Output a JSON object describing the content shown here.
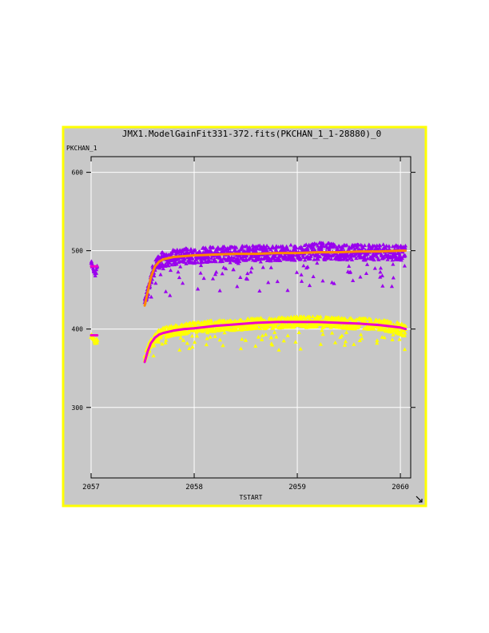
{
  "chart_data": {
    "type": "scatter",
    "title": "JMX1.ModelGainFit331-372.fits(PKCHAN_1_1-28880)_0",
    "xlabel": "TSTART",
    "ylabel": "PKCHAN_1",
    "xlim": [
      2057.0,
      2060.1
    ],
    "ylim": [
      210,
      620
    ],
    "x_ticks": [
      "2057",
      "2058",
      "2059",
      "2060"
    ],
    "y_ticks": [
      "300",
      "400",
      "500",
      "600"
    ],
    "grid": true,
    "colors": {
      "background": "#c8c8c8",
      "frame": "#ffff00",
      "grid": "#ffffff",
      "upper_points": "#9900ee",
      "upper_fit": "#ff8800",
      "lower_points": "#ffff00",
      "lower_fit": "#ee00cc"
    },
    "series": [
      {
        "kind": "points",
        "color": "#9900ee",
        "segments": [
          {
            "x": [
              2057.0,
              2057.02,
              2057.04,
              2057.06
            ],
            "y": [
              486,
              478,
              471,
              481
            ],
            "spread": [
              6,
              5,
              7,
              6
            ]
          },
          {
            "x": [
              2057.52,
              2057.55,
              2057.6,
              2057.65,
              2057.7,
              2057.8,
              2057.9,
              2058.0,
              2058.1,
              2058.2,
              2058.3,
              2058.4,
              2058.5,
              2058.6,
              2058.7,
              2058.8,
              2058.9,
              2059.0,
              2059.1,
              2059.2,
              2059.3,
              2059.4,
              2059.5,
              2059.6,
              2059.7,
              2059.8,
              2059.9,
              2060.0,
              2060.05
            ],
            "y": [
              433,
              450,
              475,
              486,
              490,
              493,
              494,
              495,
              496,
              496,
              497,
              497,
              497,
              498,
              498,
              498,
              498,
              499,
              499,
              501,
              500,
              499,
              499,
              499,
              499,
              499,
              499,
              499,
              499
            ],
            "spread": [
              10,
              14,
              18,
              20,
              20,
              20,
              20,
              20,
              20,
              20,
              20,
              20,
              20,
              20,
              20,
              20,
              20,
              20,
              20,
              22,
              22,
              20,
              20,
              20,
              20,
              20,
              20,
              20,
              20
            ]
          }
        ]
      },
      {
        "kind": "points",
        "color": "#ffff00",
        "segments": [
          {
            "x": [
              2057.0,
              2057.02,
              2057.04,
              2057.06
            ],
            "y": [
              392,
              388,
              383,
              386
            ],
            "spread": [
              5,
              5,
              6,
              5
            ]
          },
          {
            "x": [
              2057.52,
              2057.55,
              2057.6,
              2057.65,
              2057.7,
              2057.8,
              2057.9,
              2058.0,
              2058.1,
              2058.2,
              2058.3,
              2058.4,
              2058.5,
              2058.6,
              2058.7,
              2058.8,
              2058.9,
              2059.0,
              2059.1,
              2059.2,
              2059.3,
              2059.4,
              2059.5,
              2059.6,
              2059.7,
              2059.8,
              2059.9,
              2060.0,
              2060.05
            ],
            "y": [
              363,
              375,
              386,
              392,
              396,
              399,
              401,
              403,
              404,
              405,
              406,
              406,
              407,
              408,
              408,
              409,
              409,
              410,
              410,
              410,
              409,
              409,
              408,
              408,
              407,
              406,
              404,
              402,
              398
            ],
            "spread": [
              8,
              12,
              14,
              14,
              14,
              14,
              14,
              14,
              14,
              14,
              14,
              14,
              14,
              14,
              14,
              14,
              14,
              14,
              14,
              14,
              14,
              14,
              14,
              14,
              14,
              14,
              14,
              16,
              16
            ]
          }
        ]
      },
      {
        "kind": "fit",
        "color": "#ff8800",
        "x": [
          2057.52,
          2057.55,
          2057.58,
          2057.62,
          2057.66,
          2057.7,
          2057.8,
          2057.9,
          2058.0,
          2058.2,
          2058.4,
          2058.6,
          2058.8,
          2059.0,
          2059.2,
          2059.4,
          2059.6,
          2059.8,
          2060.0,
          2060.05
        ],
        "y": [
          430,
          448,
          466,
          480,
          486,
          489,
          492,
          493,
          494,
          495,
          496,
          496,
          497,
          497,
          498,
          498,
          499,
          499,
          500,
          500
        ]
      },
      {
        "kind": "fit",
        "color": "#ee00cc",
        "x": [
          2057.52,
          2057.55,
          2057.58,
          2057.62,
          2057.66,
          2057.7,
          2057.8,
          2057.9,
          2058.0,
          2058.2,
          2058.4,
          2058.6,
          2058.8,
          2059.0,
          2059.2,
          2059.4,
          2059.6,
          2059.8,
          2060.0,
          2060.05
        ],
        "y": [
          358,
          372,
          382,
          389,
          393,
          395,
          398,
          400,
          401,
          404,
          406,
          408,
          409,
          409,
          409,
          408,
          407,
          405,
          402,
          400
        ]
      },
      {
        "kind": "fit",
        "color": "#ee00cc",
        "x": [
          2057.0,
          2057.06
        ],
        "y": [
          480,
          480
        ]
      },
      {
        "kind": "fit",
        "color": "#ee00cc",
        "x": [
          2057.0,
          2057.06
        ],
        "y": [
          392,
          392
        ]
      }
    ]
  }
}
